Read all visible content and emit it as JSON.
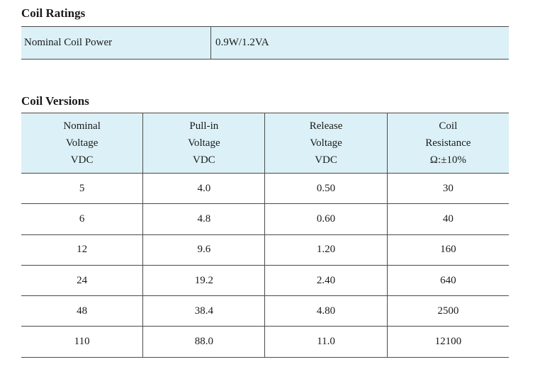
{
  "coil_ratings": {
    "title": "Coil Ratings",
    "rows": [
      {
        "label": "Nominal Coil Power",
        "value": "0.9W/1.2VA"
      }
    ]
  },
  "coil_versions": {
    "title": "Coil Versions",
    "headers": [
      [
        "Nominal",
        "Voltage",
        "VDC"
      ],
      [
        "Pull-in",
        "Voltage",
        "VDC"
      ],
      [
        "Release",
        "Voltage",
        "VDC"
      ],
      [
        "Coil",
        "Resistance",
        "Ω:±10%"
      ]
    ],
    "rows": [
      [
        "5",
        "4.0",
        "0.50",
        "30"
      ],
      [
        "6",
        "4.8",
        "0.60",
        "40"
      ],
      [
        "12",
        "9.6",
        "1.20",
        "160"
      ],
      [
        "24",
        "19.2",
        "2.40",
        "640"
      ],
      [
        "48",
        "38.4",
        "4.80",
        "2500"
      ],
      [
        "110",
        "88.0",
        "11.0",
        "12100"
      ]
    ]
  }
}
